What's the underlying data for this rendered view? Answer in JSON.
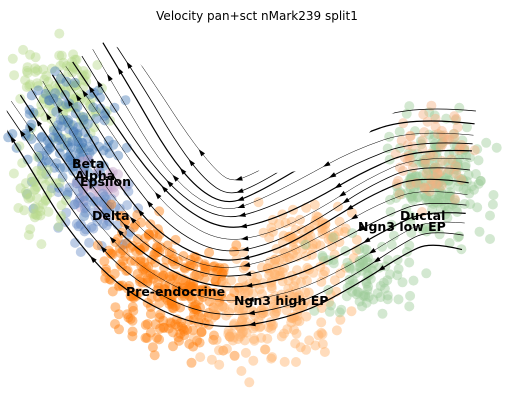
{
  "chart_data": {
    "type": "scatter",
    "title": "Velocity pan+sct nMark239 split1",
    "xlabel": "",
    "ylabel": "",
    "grid": false,
    "axes_visible": false,
    "overlay": "velocity streamlines with arrowheads",
    "cluster_colors": {
      "Beta": "#4c7fb8",
      "Alpha": "#b9d98c",
      "Epsilon": "#c3a3c9",
      "Delta": "#6a8fc7",
      "Pre-endocrine": "#ff7f0e",
      "Ngn3 high EP": "#ffb26b",
      "Ngn3 low EP": "#f4b183",
      "Ductal": "#9ecb9a"
    },
    "labels": [
      "Beta",
      "Alpha",
      "Epsilon",
      "Delta",
      "Pre-endocrine",
      "Ngn3 high EP",
      "Ductal",
      "Ngn3 low EP"
    ]
  }
}
